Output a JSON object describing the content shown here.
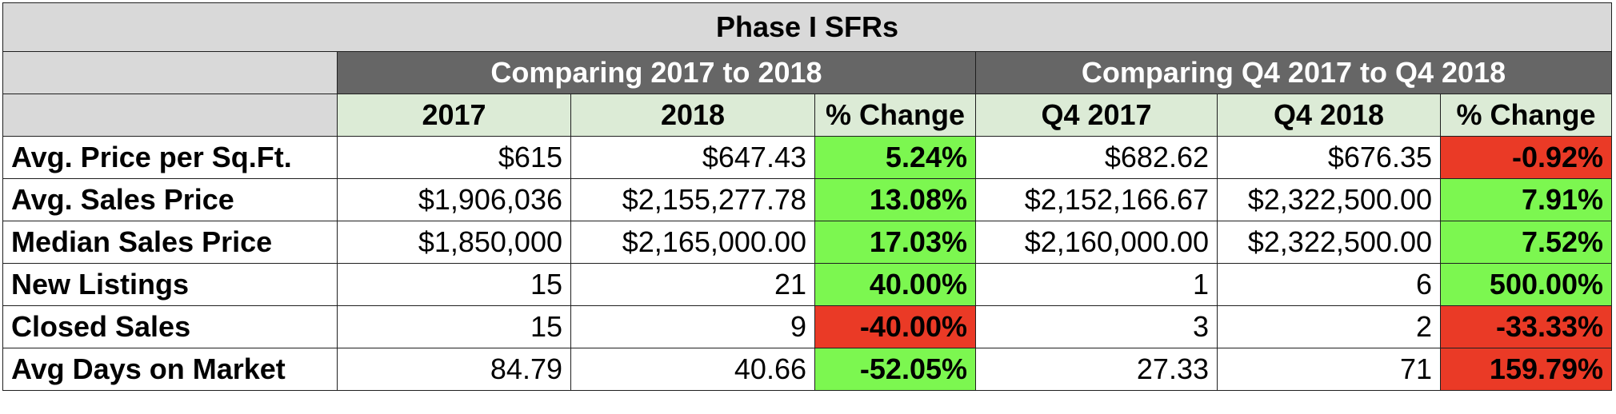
{
  "title": "Phase I SFRs",
  "groups": [
    {
      "label": "Comparing 2017 to 2018"
    },
    {
      "label": "Comparing Q4 2017 to Q4 2018"
    }
  ],
  "columns": [
    "2017",
    "2018",
    "% Change",
    "Q4 2017",
    "Q4 2018",
    "% Change"
  ],
  "colors": {
    "positive": "#7cf750",
    "negative": "#ea3a26",
    "header_gray": "#d9d9d9",
    "group_dark": "#666666",
    "col_header_green": "#dcebd6"
  },
  "rows": [
    {
      "label": "Avg. Price per Sq.Ft.",
      "v2017": "$615",
      "v2018": "$647.43",
      "pct1": "5.24%",
      "q4_2017": "$682.62",
      "q4_2018": "$676.35",
      "pct2": "-0.92%"
    },
    {
      "label": "Avg. Sales Price",
      "v2017": "$1,906,036",
      "v2018": "$2,155,277.78",
      "pct1": "13.08%",
      "q4_2017": "$2,152,166.67",
      "q4_2018": "$2,322,500.00",
      "pct2": "7.91%"
    },
    {
      "label": "Median Sales Price",
      "v2017": "$1,850,000",
      "v2018": "$2,165,000.00",
      "pct1": "17.03%",
      "q4_2017": "$2,160,000.00",
      "q4_2018": "$2,322,500.00",
      "pct2": "7.52%"
    },
    {
      "label": "New Listings",
      "v2017": "15",
      "v2018": "21",
      "pct1": "40.00%",
      "q4_2017": "1",
      "q4_2018": "6",
      "pct2": "500.00%"
    },
    {
      "label": "Closed Sales",
      "v2017": "15",
      "v2018": "9",
      "pct1": "-40.00%",
      "q4_2017": "3",
      "q4_2018": "2",
      "pct2": "-33.33%"
    },
    {
      "label": "Avg Days on Market",
      "v2017": "84.79",
      "v2018": "40.66",
      "pct1": "-52.05%",
      "q4_2017": "27.33",
      "q4_2018": "71",
      "pct2": "159.79%"
    }
  ]
}
